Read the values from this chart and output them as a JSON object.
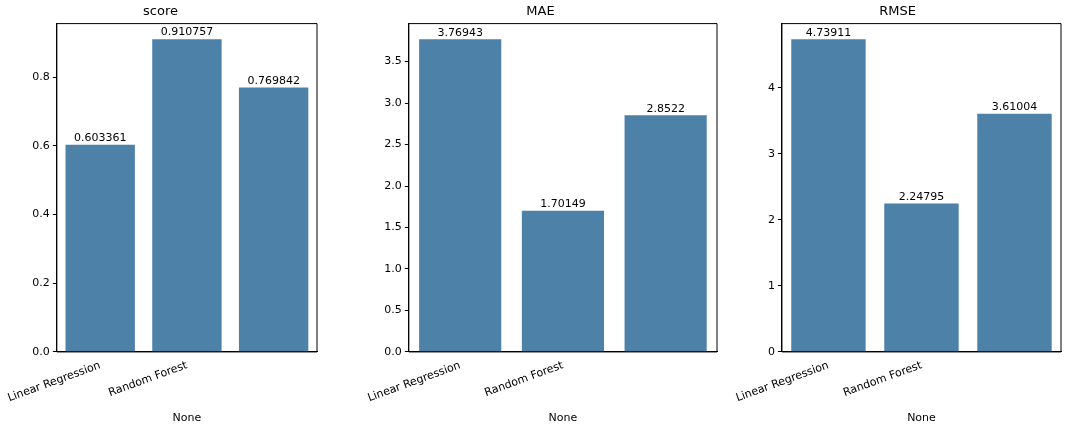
{
  "chart_data": [
    {
      "type": "bar",
      "title": "score",
      "xlabel": "None",
      "categories": [
        "Linear Regression",
        "Random Forest",
        null
      ],
      "values": [
        0.603361,
        0.910757,
        0.769842
      ],
      "color": "#4e81a8",
      "ylim": [
        0,
        0.956
      ],
      "yticks": [
        {
          "value": 0,
          "label": "0.0"
        },
        0.2,
        0.4,
        0.6,
        0.8
      ],
      "data_labels": true,
      "grid": false,
      "legend": false
    },
    {
      "type": "bar",
      "title": "MAE",
      "xlabel": "None",
      "categories": [
        "Linear Regression",
        "Random Forest",
        null
      ],
      "values": [
        3.76943,
        1.70149,
        2.8522
      ],
      "color": "#4e81a8",
      "ylim": [
        0,
        3.958
      ],
      "yticks": [
        {
          "value": 0,
          "label": "0.0"
        },
        0.5,
        {
          "value": 1,
          "label": "1.0"
        },
        1.5,
        {
          "value": 2,
          "label": "2.0"
        },
        2.5,
        {
          "value": 3,
          "label": "3.0"
        },
        3.5
      ],
      "data_labels": true,
      "grid": false,
      "legend": false
    },
    {
      "type": "bar",
      "title": "RMSE",
      "xlabel": "None",
      "categories": [
        "Linear Regression",
        "Random Forest",
        null
      ],
      "values": [
        4.73911,
        2.24795,
        3.61004
      ],
      "color": "#4e81a8",
      "ylim": [
        0,
        4.976
      ],
      "yticks": [
        0,
        1,
        2,
        3,
        4
      ],
      "data_labels": true,
      "grid": false,
      "legend": false
    }
  ]
}
